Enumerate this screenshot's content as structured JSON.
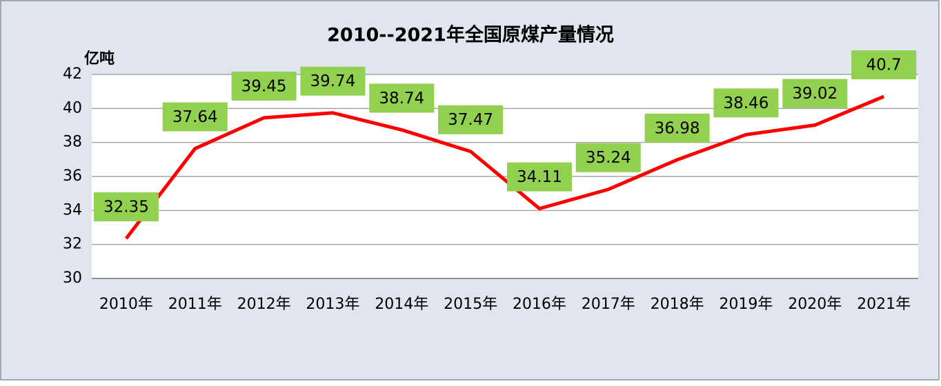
{
  "chart_data": {
    "type": "line",
    "title": "2010--2021年全国原煤产量情况",
    "y_label": "亿吨",
    "categories": [
      "2010年",
      "2011年",
      "2012年",
      "2013年",
      "2014年",
      "2015年",
      "2016年",
      "2017年",
      "2018年",
      "2019年",
      "2020年",
      "2021年"
    ],
    "series": [
      {
        "name": "原煤产量",
        "color": "#ff0000",
        "values": [
          32.35,
          37.64,
          39.45,
          39.74,
          38.74,
          37.47,
          34.11,
          35.24,
          36.98,
          38.46,
          39.02,
          40.7
        ]
      }
    ],
    "label_color": "#92d050",
    "ylim": [
      30,
      42
    ],
    "yticks": [
      30,
      32,
      34,
      36,
      38,
      40,
      42
    ],
    "grid": true
  }
}
